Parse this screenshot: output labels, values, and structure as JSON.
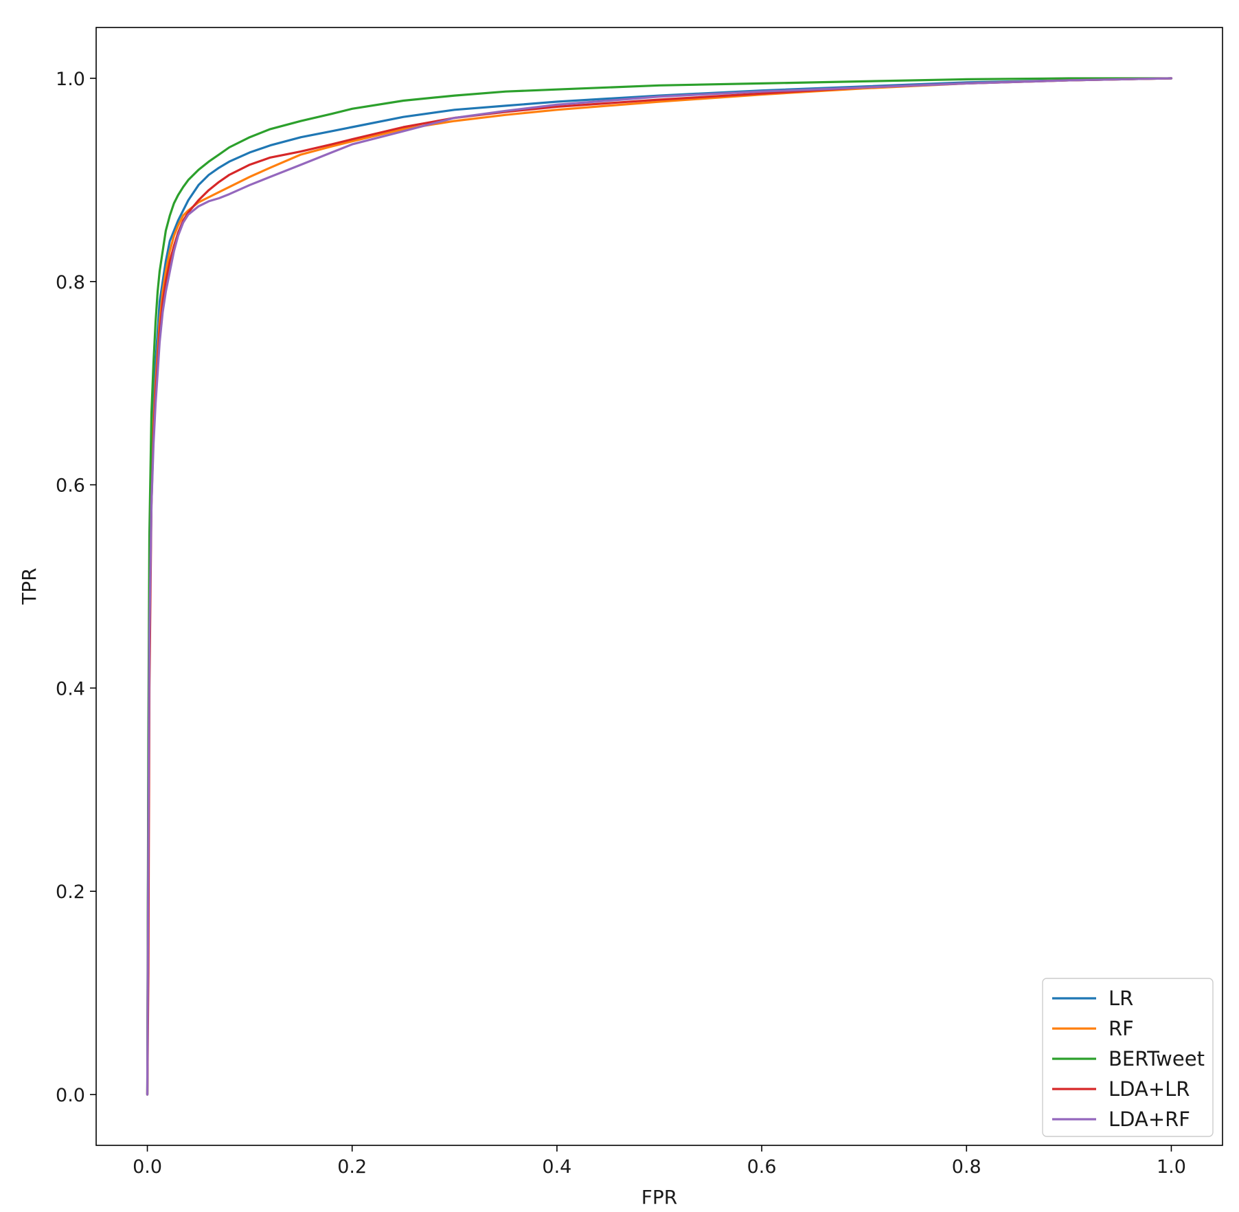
{
  "chart_data": {
    "type": "line",
    "title": "",
    "xlabel": "FPR",
    "ylabel": "TPR",
    "xlim": [
      -0.05,
      1.05
    ],
    "ylim": [
      -0.05,
      1.05
    ],
    "xticks": [
      0.0,
      0.2,
      0.4,
      0.6,
      0.8,
      1.0
    ],
    "yticks": [
      0.0,
      0.2,
      0.4,
      0.6,
      0.8,
      1.0
    ],
    "xtick_labels": [
      "0.0",
      "0.2",
      "0.4",
      "0.6",
      "0.8",
      "1.0"
    ],
    "ytick_labels": [
      "0.0",
      "0.2",
      "0.4",
      "0.6",
      "0.8",
      "1.0"
    ],
    "grid": false,
    "legend_position": "bottom-right",
    "series": [
      {
        "name": "LR",
        "color": "#1f77b4",
        "x": [
          0,
          0.001,
          0.002,
          0.004,
          0.006,
          0.008,
          0.01,
          0.012,
          0.015,
          0.018,
          0.022,
          0.026,
          0.03,
          0.035,
          0.04,
          0.05,
          0.06,
          0.07,
          0.08,
          0.1,
          0.12,
          0.15,
          0.18,
          0.2,
          0.25,
          0.3,
          0.35,
          0.4,
          0.5,
          0.6,
          0.7,
          0.8,
          0.9,
          1.0
        ],
        "y": [
          0,
          0.3,
          0.5,
          0.62,
          0.68,
          0.72,
          0.75,
          0.78,
          0.8,
          0.82,
          0.84,
          0.85,
          0.86,
          0.87,
          0.88,
          0.895,
          0.905,
          0.912,
          0.918,
          0.927,
          0.934,
          0.942,
          0.948,
          0.952,
          0.962,
          0.969,
          0.973,
          0.977,
          0.983,
          0.988,
          0.992,
          0.996,
          0.998,
          1.0
        ]
      },
      {
        "name": "RF",
        "color": "#ff7f0e",
        "x": [
          0,
          0.001,
          0.002,
          0.004,
          0.006,
          0.008,
          0.01,
          0.012,
          0.015,
          0.018,
          0.022,
          0.026,
          0.03,
          0.035,
          0.04,
          0.05,
          0.06,
          0.07,
          0.08,
          0.1,
          0.12,
          0.15,
          0.18,
          0.2,
          0.25,
          0.3,
          0.35,
          0.4,
          0.5,
          0.6,
          0.7,
          0.8,
          0.9,
          1.0
        ],
        "y": [
          0,
          0.28,
          0.48,
          0.6,
          0.66,
          0.7,
          0.73,
          0.76,
          0.79,
          0.81,
          0.83,
          0.845,
          0.855,
          0.865,
          0.87,
          0.878,
          0.883,
          0.888,
          0.893,
          0.903,
          0.912,
          0.925,
          0.933,
          0.938,
          0.95,
          0.958,
          0.964,
          0.969,
          0.977,
          0.984,
          0.99,
          0.995,
          0.998,
          1.0
        ]
      },
      {
        "name": "BERTweet",
        "color": "#2ca02c",
        "x": [
          0,
          0.001,
          0.002,
          0.004,
          0.006,
          0.008,
          0.01,
          0.012,
          0.015,
          0.018,
          0.022,
          0.026,
          0.03,
          0.035,
          0.04,
          0.05,
          0.06,
          0.07,
          0.08,
          0.1,
          0.12,
          0.15,
          0.18,
          0.2,
          0.25,
          0.3,
          0.35,
          0.4,
          0.5,
          0.6,
          0.7,
          0.8,
          0.9,
          1.0
        ],
        "y": [
          0,
          0.35,
          0.55,
          0.67,
          0.72,
          0.76,
          0.79,
          0.81,
          0.83,
          0.85,
          0.865,
          0.877,
          0.885,
          0.893,
          0.9,
          0.91,
          0.918,
          0.925,
          0.932,
          0.942,
          0.95,
          0.958,
          0.965,
          0.97,
          0.978,
          0.983,
          0.987,
          0.989,
          0.993,
          0.995,
          0.997,
          0.999,
          1.0,
          1.0
        ]
      },
      {
        "name": "LDA+LR",
        "color": "#d62728",
        "x": [
          0,
          0.001,
          0.002,
          0.004,
          0.006,
          0.008,
          0.01,
          0.012,
          0.015,
          0.018,
          0.022,
          0.026,
          0.03,
          0.035,
          0.04,
          0.05,
          0.06,
          0.07,
          0.08,
          0.1,
          0.12,
          0.15,
          0.18,
          0.2,
          0.25,
          0.3,
          0.35,
          0.4,
          0.5,
          0.6,
          0.7,
          0.8,
          0.9,
          1.0
        ],
        "y": [
          0,
          0.12,
          0.4,
          0.58,
          0.65,
          0.69,
          0.72,
          0.75,
          0.78,
          0.8,
          0.82,
          0.835,
          0.848,
          0.86,
          0.868,
          0.88,
          0.89,
          0.898,
          0.905,
          0.915,
          0.922,
          0.928,
          0.935,
          0.94,
          0.952,
          0.961,
          0.967,
          0.972,
          0.979,
          0.985,
          0.991,
          0.995,
          0.998,
          1.0
        ]
      },
      {
        "name": "LDA+RF",
        "color": "#9467bd",
        "x": [
          0,
          0.001,
          0.002,
          0.004,
          0.006,
          0.008,
          0.01,
          0.012,
          0.015,
          0.018,
          0.022,
          0.026,
          0.03,
          0.035,
          0.04,
          0.05,
          0.06,
          0.07,
          0.08,
          0.1,
          0.12,
          0.15,
          0.18,
          0.2,
          0.25,
          0.3,
          0.35,
          0.4,
          0.5,
          0.6,
          0.7,
          0.8,
          0.9,
          1.0
        ],
        "y": [
          0,
          0.25,
          0.45,
          0.58,
          0.64,
          0.68,
          0.71,
          0.74,
          0.77,
          0.79,
          0.81,
          0.83,
          0.845,
          0.858,
          0.866,
          0.874,
          0.879,
          0.882,
          0.886,
          0.895,
          0.903,
          0.915,
          0.927,
          0.935,
          0.948,
          0.961,
          0.968,
          0.974,
          0.982,
          0.987,
          0.991,
          0.995,
          0.998,
          1.0
        ]
      }
    ]
  }
}
